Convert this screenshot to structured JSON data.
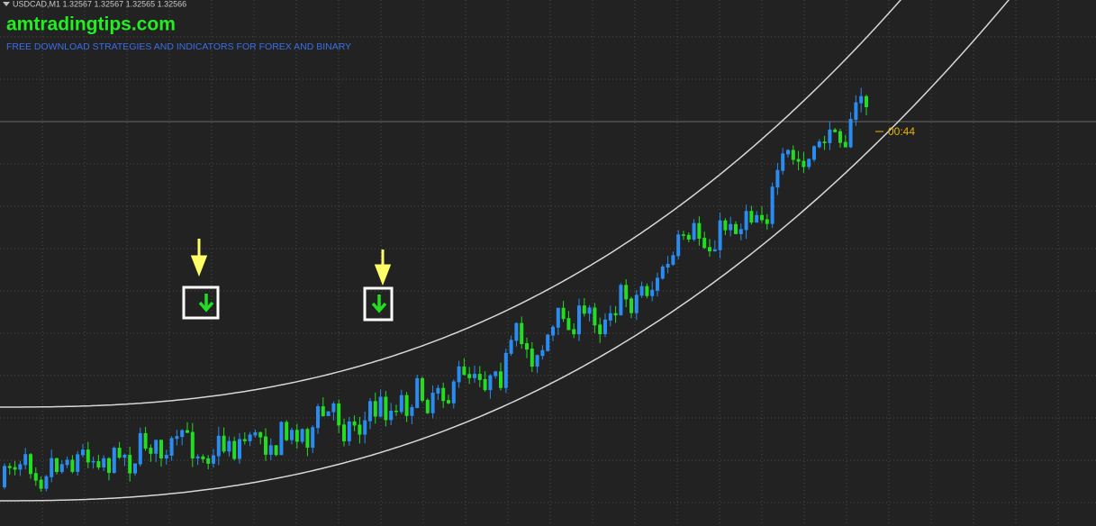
{
  "header": {
    "symbol": "USDCAD,M1  1.32567 1.32567 1.32565 1.32566"
  },
  "brand": {
    "title": "amtradingtips.com",
    "tagline": "FREE DOWNLOAD STRATEGIES AND INDICATORS FOR FOREX AND BINARY"
  },
  "timer": {
    "label": "00:44"
  }
}
